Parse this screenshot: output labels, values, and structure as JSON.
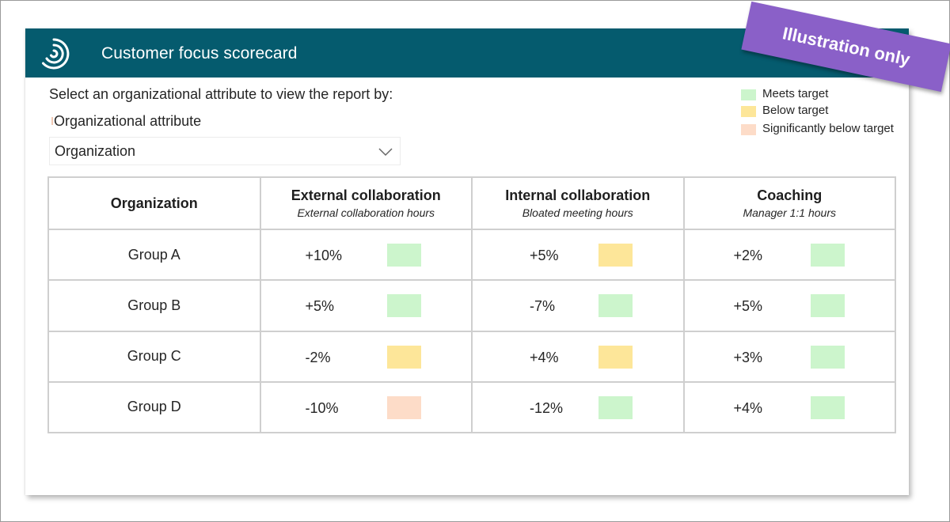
{
  "header": {
    "title": "Customer focus scorecard",
    "logo_icon": "viva-insights-logo-icon"
  },
  "badge": {
    "text": "Illustration only",
    "color": "#8a60c8"
  },
  "filter": {
    "prompt": "Select an organizational attribute to view the report by:",
    "label": "Organizational attribute",
    "selected": "Organization",
    "chevron_icon": "chevron-down-icon"
  },
  "legend": {
    "items": [
      {
        "label": "Meets target",
        "color": "#ccf5cc"
      },
      {
        "label": "Below target",
        "color": "#fde699"
      },
      {
        "label": "Significantly below target",
        "color": "#fddcc8"
      }
    ]
  },
  "table": {
    "columns": [
      {
        "title": "Organization",
        "subtitle": ""
      },
      {
        "title": "External collaboration",
        "subtitle": "External collaboration hours"
      },
      {
        "title": "Internal collaboration",
        "subtitle": "Bloated meeting hours"
      },
      {
        "title": "Coaching",
        "subtitle": "Manager 1:1 hours"
      }
    ],
    "rows": [
      {
        "group": "Group A",
        "cells": [
          {
            "value": "+10%",
            "status": "meets"
          },
          {
            "value": "+5%",
            "status": "below"
          },
          {
            "value": "+2%",
            "status": "meets"
          }
        ]
      },
      {
        "group": "Group B",
        "cells": [
          {
            "value": "+5%",
            "status": "meets"
          },
          {
            "value": "-7%",
            "status": "meets"
          },
          {
            "value": "+5%",
            "status": "meets"
          }
        ]
      },
      {
        "group": "Group C",
        "cells": [
          {
            "value": "-2%",
            "status": "below"
          },
          {
            "value": "+4%",
            "status": "below"
          },
          {
            "value": "+3%",
            "status": "meets"
          }
        ]
      },
      {
        "group": "Group D",
        "cells": [
          {
            "value": "-10%",
            "status": "significantly-below"
          },
          {
            "value": "-12%",
            "status": "meets"
          },
          {
            "value": "+4%",
            "status": "meets"
          }
        ]
      }
    ]
  },
  "colors": {
    "header_bg": "#055b6e",
    "meets": "#ccf5cc",
    "below": "#fde699",
    "significantly-below": "#fddcc8"
  }
}
